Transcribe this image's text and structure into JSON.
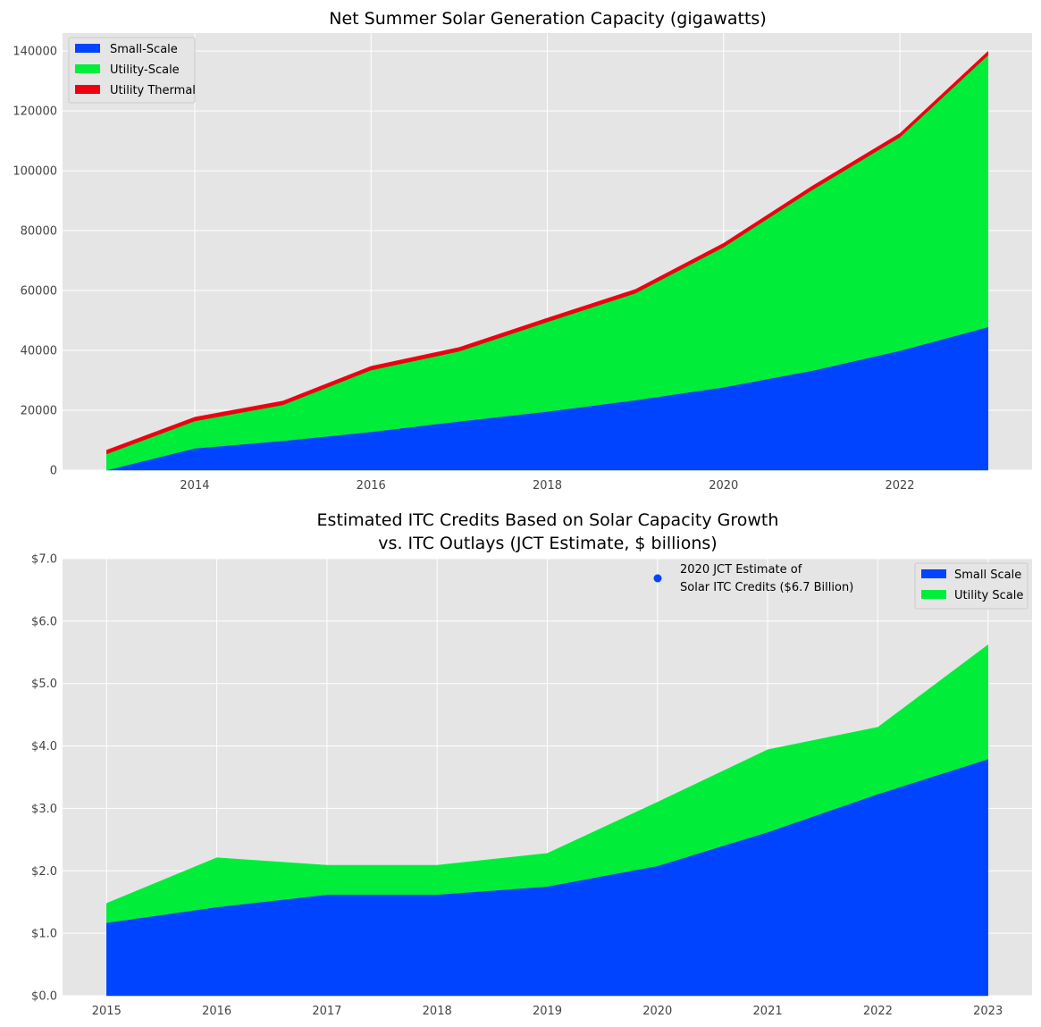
{
  "chart_data": [
    {
      "type": "area",
      "stacked": true,
      "title": "Net Summer Solar Generation Capacity (gigawatts)",
      "xlabel": "",
      "ylabel": "",
      "x": [
        2013,
        2014,
        2015,
        2016,
        2017,
        2018,
        2019,
        2020,
        2021,
        2022,
        2023
      ],
      "xlim": [
        2012.5,
        2023.5
      ],
      "ylim": [
        0,
        146000
      ],
      "xticks": [
        2014,
        2016,
        2018,
        2020,
        2022
      ],
      "xtick_labels": [
        "2014",
        "2016",
        "2018",
        "2020",
        "2022"
      ],
      "yticks": [
        0,
        20000,
        40000,
        60000,
        80000,
        100000,
        120000,
        140000
      ],
      "ytick_labels": [
        "0",
        "20000",
        "40000",
        "60000",
        "80000",
        "100000",
        "120000",
        "140000"
      ],
      "grid": true,
      "legend_position": "top-left",
      "series": [
        {
          "name": "Small-Scale",
          "color": "#0044ff",
          "values": [
            0,
            7300,
            9800,
            12800,
            16300,
            19600,
            23400,
            27700,
            33200,
            39900,
            47800
          ]
        },
        {
          "name": "Utility-Scale",
          "color": "#00ee3a",
          "values": [
            5400,
            9100,
            12000,
            20600,
            23400,
            29900,
            35700,
            46800,
            60300,
            71300,
            90800
          ]
        },
        {
          "name": "Utility Thermal",
          "color": "#ee0011",
          "values": [
            1300,
            1300,
            1300,
            1300,
            1300,
            1300,
            1300,
            1300,
            1300,
            1300,
            1300
          ]
        }
      ]
    },
    {
      "type": "area",
      "stacked": true,
      "title": "Estimated ITC Credits Based on Solar Capacity Growth",
      "title_line2": "vs. ITC Outlays (JCT Estimate, $ billions)",
      "xlabel": "",
      "ylabel": "",
      "x": [
        2015,
        2016,
        2017,
        2018,
        2019,
        2020,
        2021,
        2022,
        2023
      ],
      "xlim": [
        2014.6,
        2023.4
      ],
      "ylim": [
        0,
        7.0
      ],
      "xticks": [
        2015,
        2016,
        2017,
        2018,
        2019,
        2020,
        2021,
        2022,
        2023
      ],
      "xtick_labels": [
        "2015",
        "2016",
        "2017",
        "2018",
        "2019",
        "2020",
        "2021",
        "2022",
        "2023"
      ],
      "yticks": [
        0,
        1,
        2,
        3,
        4,
        5,
        6,
        7
      ],
      "ytick_labels": [
        "$0.0",
        "$1.0",
        "$2.0",
        "$3.0",
        "$4.0",
        "$5.0",
        "$6.0",
        "$7.0"
      ],
      "grid": true,
      "legend_position": "top-right",
      "series": [
        {
          "name": "Small Scale",
          "color": "#0044ff",
          "values": [
            1.17,
            1.42,
            1.62,
            1.62,
            1.75,
            2.08,
            2.62,
            3.23,
            3.79
          ]
        },
        {
          "name": "Utility Scale",
          "color": "#00ee3a",
          "values": [
            0.31,
            0.79,
            0.47,
            0.47,
            0.53,
            1.02,
            1.32,
            1.07,
            1.83
          ]
        }
      ],
      "scatter": {
        "name_line1": "2020 JCT Estimate of",
        "name_line2": "Solar ITC Credits ($6.7 Billion)",
        "x": 2020,
        "y": 6.7,
        "color": "#0044ff"
      }
    }
  ]
}
